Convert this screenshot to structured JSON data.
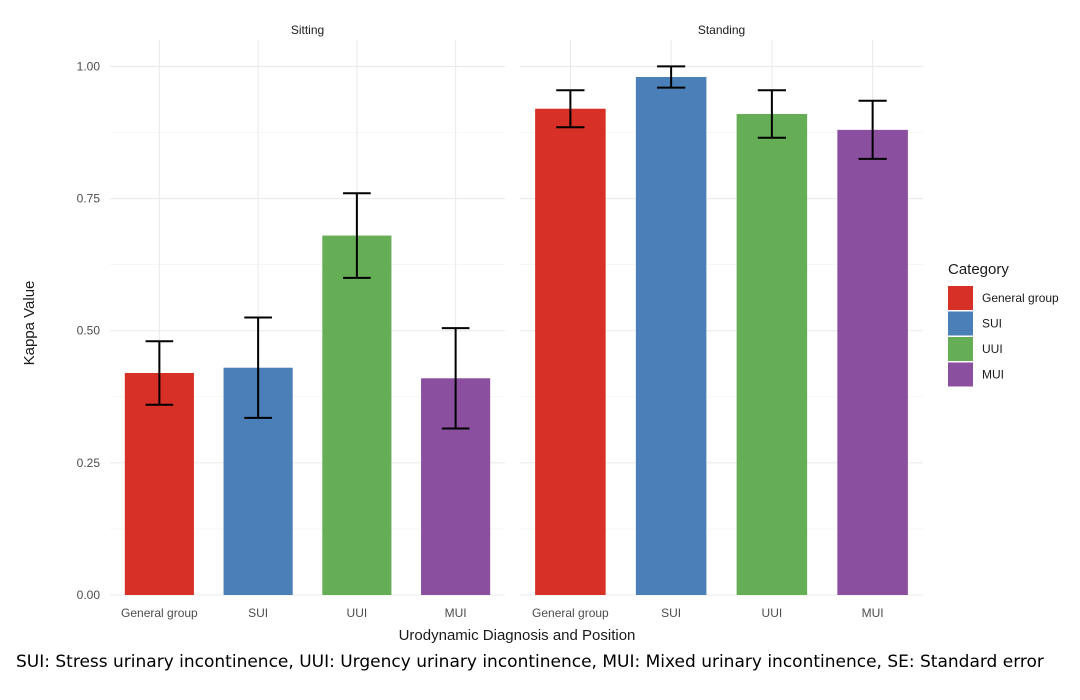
{
  "chart_data": {
    "type": "bar",
    "ylabel": "Kappa Value",
    "xlabel": "Urodynamic Diagnosis and Position",
    "ylim": [
      0,
      1.05
    ],
    "y_ticks": [
      "0.00",
      "0.25",
      "0.50",
      "0.75",
      "1.00"
    ],
    "y_tick_values": [
      0,
      0.25,
      0.5,
      0.75,
      1.0
    ],
    "grid": true,
    "legend": {
      "title": "Category",
      "placement": "right",
      "entries": [
        {
          "label": "General group",
          "color": "#d73027"
        },
        {
          "label": "SUI",
          "color": "#4a7fb8"
        },
        {
          "label": "UUI",
          "color": "#66ae55"
        },
        {
          "label": "MUI",
          "color": "#8b4fa0"
        }
      ]
    },
    "panels": [
      {
        "title": "Sitting",
        "categories": [
          "General group",
          "SUI",
          "UUI",
          "MUI"
        ],
        "values": [
          0.42,
          0.43,
          0.68,
          0.41
        ],
        "error_low": [
          0.36,
          0.335,
          0.6,
          0.315
        ],
        "error_high": [
          0.48,
          0.525,
          0.76,
          0.505
        ]
      },
      {
        "title": "Standing",
        "categories": [
          "General group",
          "SUI",
          "UUI",
          "MUI"
        ],
        "values": [
          0.92,
          0.98,
          0.91,
          0.88
        ],
        "error_low": [
          0.885,
          0.96,
          0.865,
          0.825
        ],
        "error_high": [
          0.955,
          1.0,
          0.955,
          0.935
        ]
      }
    ]
  },
  "footnote": "SUI: Stress urinary incontinence, UUI: Urgency urinary incontinence, MUI: Mixed urinary incontinence, SE: Standard error"
}
